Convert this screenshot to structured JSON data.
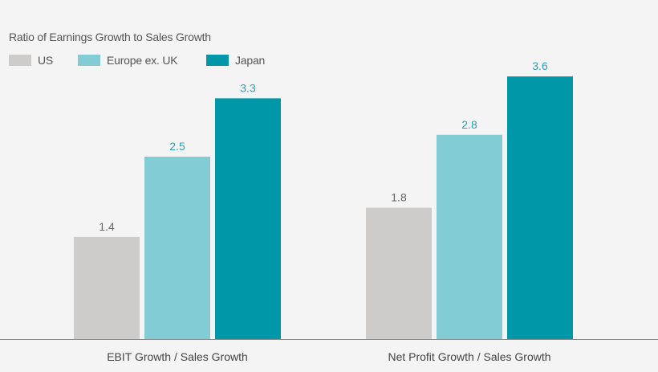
{
  "chart_data": {
    "type": "bar",
    "title": "Ratio of Earnings Growth to Sales Growth",
    "categories": [
      "EBIT Growth / Sales Growth",
      "Net Profit Growth / Sales Growth"
    ],
    "series": [
      {
        "name": "US",
        "values": [
          1.4,
          1.8
        ],
        "color": "#cecccb",
        "label_color": "#666666"
      },
      {
        "name": "Europe ex. UK",
        "values": [
          2.5,
          2.8
        ],
        "color": "#82ccd6",
        "label_color": "#2aa0b5"
      },
      {
        "name": "Japan",
        "values": [
          3.3,
          3.6
        ],
        "color": "#0098a8",
        "label_color": "#2aa0b5"
      }
    ],
    "ylim": [
      0,
      4.5
    ],
    "grid": false,
    "legend_position": "top-left",
    "axis_color": "#888888"
  }
}
